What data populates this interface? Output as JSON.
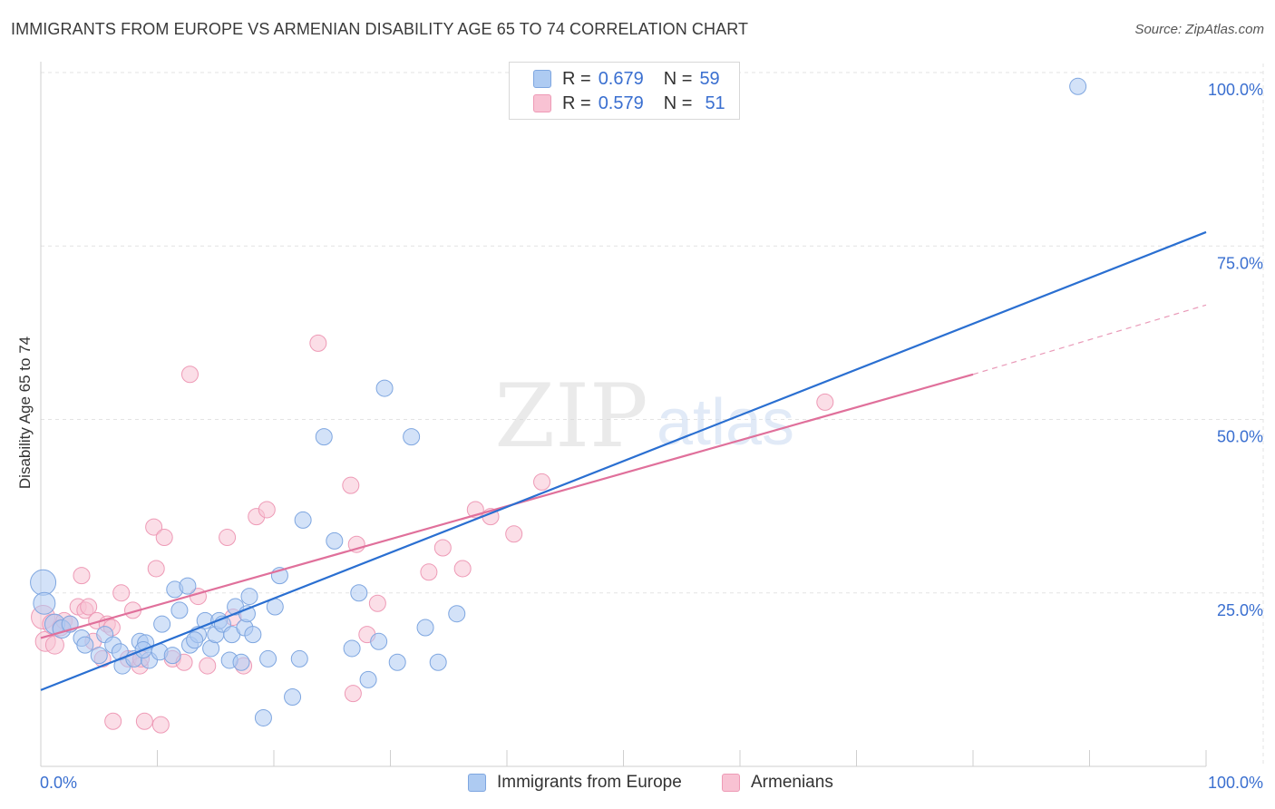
{
  "header": {
    "title": "IMMIGRANTS FROM EUROPE VS ARMENIAN DISABILITY AGE 65 TO 74 CORRELATION CHART",
    "source": "Source: ZipAtlas.com"
  },
  "watermark": {
    "zip": "ZIP",
    "atlas": "atlas"
  },
  "legend": {
    "rows": [
      {
        "r_label": "R =",
        "r_value": "0.679",
        "n_label": "N =",
        "n_value": "59"
      },
      {
        "r_label": "R =",
        "r_value": "0.579",
        "n_label": "N =",
        "n_value": "51"
      }
    ]
  },
  "bottom_legend": {
    "items": [
      {
        "label": "Immigrants from Europe"
      },
      {
        "label": "Armenians"
      }
    ]
  },
  "colors": {
    "blue_fill": "#aecbf2",
    "blue_stroke": "#7ea6e0",
    "blue_line": "#2a6fd1",
    "pink_fill": "#f8c2d3",
    "pink_stroke": "#ee9ab6",
    "pink_line": "#e0709b",
    "tick_label": "#3a6fd0",
    "grid": "#e3e3e3"
  },
  "chart_data": {
    "type": "scatter",
    "title": "IMMIGRANTS FROM EUROPE VS ARMENIAN DISABILITY AGE 65 TO 74 CORRELATION CHART",
    "xlabel": "",
    "ylabel": "Disability Age 65 to 74",
    "xlim": [
      0,
      100
    ],
    "ylim": [
      0,
      100
    ],
    "x_tick_labels": [
      "0.0%",
      "100.0%"
    ],
    "y_ticks": [
      {
        "value": 25,
        "label": "25.0%"
      },
      {
        "value": 50,
        "label": "50.0%"
      },
      {
        "value": 75,
        "label": "75.0%"
      },
      {
        "value": 100,
        "label": "100.0%"
      }
    ],
    "grid": true,
    "legend_position": "top-center",
    "series": [
      {
        "name": "Immigrants from Europe",
        "trend": {
          "x0": 0,
          "y0": 11,
          "x1": 100,
          "y1": 77
        },
        "points": [
          [
            0.2,
            26.5,
            14
          ],
          [
            0.3,
            23.5,
            12
          ],
          [
            1.2,
            20.5,
            11
          ],
          [
            1.8,
            19.8,
            10
          ],
          [
            2.5,
            20.5,
            9
          ],
          [
            3.5,
            18.5,
            9
          ],
          [
            3.8,
            17.5,
            9
          ],
          [
            5.0,
            16.0,
            9
          ],
          [
            5.5,
            19.0,
            9
          ],
          [
            6.2,
            17.5,
            9
          ],
          [
            6.8,
            16.5,
            9
          ],
          [
            7.0,
            14.5,
            9
          ],
          [
            8.0,
            15.5,
            9
          ],
          [
            8.5,
            18.0,
            9
          ],
          [
            9.0,
            17.8,
            9
          ],
          [
            9.3,
            15.3,
            9
          ],
          [
            10.2,
            16.5,
            9
          ],
          [
            10.4,
            20.5,
            9
          ],
          [
            11.3,
            16.0,
            9
          ],
          [
            11.5,
            25.5,
            9
          ],
          [
            11.9,
            22.5,
            9
          ],
          [
            12.6,
            26.0,
            9
          ],
          [
            12.8,
            17.5,
            9
          ],
          [
            13.5,
            19.0,
            9
          ],
          [
            14.1,
            21.0,
            9
          ],
          [
            14.6,
            17.0,
            9
          ],
          [
            15.0,
            19.0,
            9
          ],
          [
            15.3,
            21.0,
            9
          ],
          [
            15.6,
            20.5,
            9
          ],
          [
            16.2,
            15.3,
            9
          ],
          [
            16.4,
            19.0,
            9
          ],
          [
            16.7,
            23.0,
            9
          ],
          [
            17.2,
            15.0,
            9
          ],
          [
            17.5,
            20.0,
            9
          ],
          [
            17.7,
            22.0,
            9
          ],
          [
            17.9,
            24.5,
            9
          ],
          [
            18.2,
            19.0,
            9
          ],
          [
            19.1,
            7.0,
            9
          ],
          [
            19.5,
            15.5,
            9
          ],
          [
            20.1,
            23.0,
            9
          ],
          [
            20.5,
            27.5,
            9
          ],
          [
            21.6,
            10.0,
            9
          ],
          [
            22.2,
            15.5,
            9
          ],
          [
            22.5,
            35.5,
            9
          ],
          [
            24.3,
            47.5,
            9
          ],
          [
            25.2,
            32.5,
            9
          ],
          [
            26.7,
            17.0,
            9
          ],
          [
            27.3,
            25.0,
            9
          ],
          [
            28.1,
            12.5,
            9
          ],
          [
            29.0,
            18.0,
            9
          ],
          [
            29.5,
            54.5,
            9
          ],
          [
            30.6,
            15.0,
            9
          ],
          [
            31.8,
            47.5,
            9
          ],
          [
            33.0,
            20.0,
            9
          ],
          [
            34.1,
            15.0,
            9
          ],
          [
            35.7,
            22.0,
            9
          ],
          [
            89.0,
            98.0,
            9
          ],
          [
            8.8,
            16.8,
            9
          ],
          [
            13.2,
            18.2,
            9
          ]
        ]
      },
      {
        "name": "Armenians",
        "trend": {
          "x0": 0,
          "y0": 18.5,
          "x1": 80,
          "y1": 56.5,
          "dash_x1": 100,
          "dash_y1": 66.5
        },
        "points": [
          [
            0.2,
            21.5,
            13
          ],
          [
            0.4,
            18.0,
            11
          ],
          [
            1.0,
            20.5,
            11
          ],
          [
            1.2,
            17.5,
            10
          ],
          [
            1.7,
            20.0,
            9
          ],
          [
            2.0,
            21.0,
            9
          ],
          [
            2.5,
            20.5,
            9
          ],
          [
            3.2,
            23.0,
            9
          ],
          [
            3.5,
            27.5,
            9
          ],
          [
            3.8,
            22.5,
            9
          ],
          [
            4.1,
            23.0,
            9
          ],
          [
            4.5,
            18.0,
            9
          ],
          [
            4.8,
            21.0,
            9
          ],
          [
            5.3,
            15.5,
            9
          ],
          [
            5.7,
            20.5,
            9
          ],
          [
            6.1,
            20.0,
            9
          ],
          [
            6.2,
            6.5,
            9
          ],
          [
            6.9,
            25.0,
            9
          ],
          [
            7.5,
            15.5,
            9
          ],
          [
            7.9,
            22.5,
            9
          ],
          [
            8.5,
            14.5,
            9
          ],
          [
            8.6,
            15.5,
            9
          ],
          [
            8.9,
            6.5,
            9
          ],
          [
            9.7,
            34.5,
            9
          ],
          [
            9.9,
            28.5,
            9
          ],
          [
            10.3,
            6.0,
            9
          ],
          [
            10.6,
            33.0,
            9
          ],
          [
            11.3,
            15.5,
            9
          ],
          [
            12.3,
            15.0,
            9
          ],
          [
            12.8,
            56.5,
            9
          ],
          [
            13.5,
            24.5,
            9
          ],
          [
            14.3,
            14.5,
            9
          ],
          [
            16.0,
            33.0,
            9
          ],
          [
            16.5,
            21.5,
            9
          ],
          [
            17.4,
            14.5,
            9
          ],
          [
            18.5,
            36.0,
            9
          ],
          [
            19.4,
            37.0,
            9
          ],
          [
            23.8,
            61.0,
            9
          ],
          [
            26.6,
            40.5,
            9
          ],
          [
            26.8,
            10.5,
            9
          ],
          [
            27.1,
            32.0,
            9
          ],
          [
            28.0,
            19.0,
            9
          ],
          [
            28.9,
            23.5,
            9
          ],
          [
            33.3,
            28.0,
            9
          ],
          [
            34.5,
            31.5,
            9
          ],
          [
            36.2,
            28.5,
            9
          ],
          [
            37.3,
            37.0,
            9
          ],
          [
            38.6,
            36.0,
            9
          ],
          [
            40.6,
            33.5,
            9
          ],
          [
            43.0,
            41.0,
            9
          ],
          [
            67.3,
            52.5,
            9
          ]
        ]
      }
    ]
  }
}
